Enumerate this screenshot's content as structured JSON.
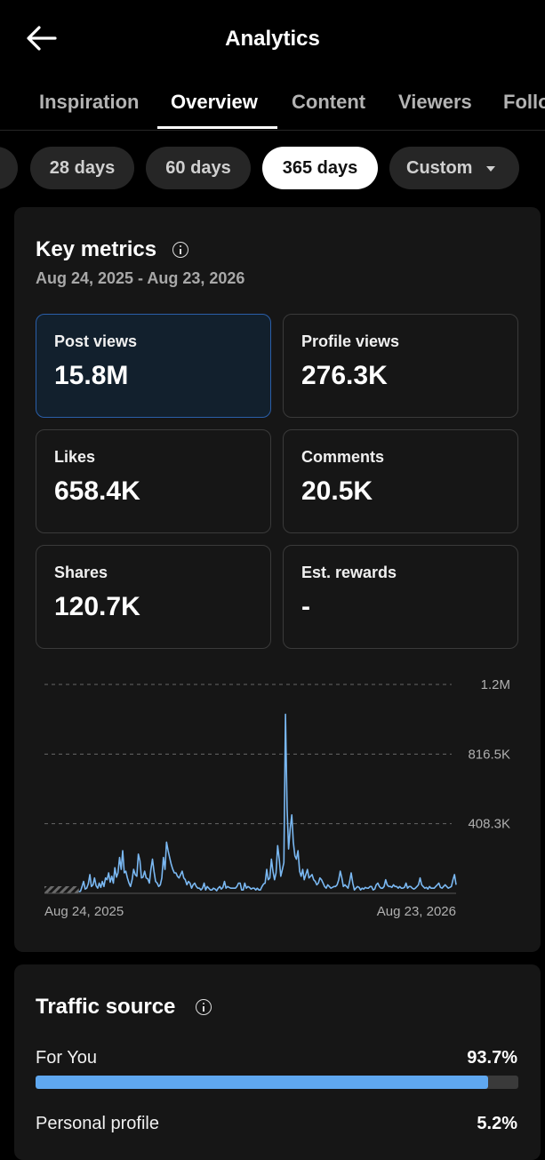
{
  "header": {
    "title": "Analytics",
    "back_icon": "back-arrow-icon"
  },
  "tabs": [
    {
      "label": "Inspiration",
      "active": false
    },
    {
      "label": "Overview",
      "active": true
    },
    {
      "label": "Content",
      "active": false
    },
    {
      "label": "Viewers",
      "active": false
    },
    {
      "label": "Follo",
      "active": false
    }
  ],
  "ranges": [
    {
      "label": "28 days",
      "active": false
    },
    {
      "label": "60 days",
      "active": false
    },
    {
      "label": "365 days",
      "active": true
    },
    {
      "label": "Custom",
      "active": false
    }
  ],
  "key_metrics": {
    "title": "Key metrics",
    "date_range": "Aug 24, 2025 - Aug 23, 2026",
    "cards": [
      {
        "label": "Post views",
        "value": "15.8M",
        "selected": true
      },
      {
        "label": "Profile views",
        "value": "276.3K",
        "selected": false
      },
      {
        "label": "Likes",
        "value": "658.4K",
        "selected": false
      },
      {
        "label": "Comments",
        "value": "20.5K",
        "selected": false
      },
      {
        "label": "Shares",
        "value": "120.7K",
        "selected": false
      },
      {
        "label": "Est. rewards",
        "value": "-",
        "selected": false
      }
    ]
  },
  "chart_data": {
    "type": "line",
    "series": [
      {
        "values": [
          0,
          0,
          0,
          0,
          0,
          0,
          0,
          0,
          0,
          0,
          0,
          0,
          0,
          0,
          0,
          0,
          0,
          0,
          0,
          0,
          0,
          0,
          10000,
          12000,
          40000,
          70000,
          25000,
          30000,
          55000,
          110000,
          40000,
          50000,
          90000,
          45000,
          30000,
          60000,
          35000,
          70000,
          40000,
          90000,
          80000,
          120000,
          65000,
          100000,
          60000,
          150000,
          95000,
          120000,
          210000,
          140000,
          250000,
          120000,
          130000,
          90000,
          60000,
          40000,
          80000,
          140000,
          110000,
          100000,
          230000,
          190000,
          90000,
          95000,
          130000,
          90000,
          85000,
          60000,
          140000,
          200000,
          130000,
          70000,
          60000,
          40000,
          50000,
          90000,
          210000,
          140000,
          300000,
          250000,
          210000,
          170000,
          140000,
          120000,
          120000,
          100000,
          90000,
          110000,
          130000,
          90000,
          80000,
          50000,
          70000,
          60000,
          30000,
          50000,
          60000,
          40000,
          30000,
          30000,
          20000,
          30000,
          60000,
          20000,
          40000,
          30000,
          20000,
          20000,
          30000,
          25000,
          15000,
          30000,
          40000,
          25000,
          35000,
          70000,
          30000,
          40000,
          35000,
          30000,
          30000,
          30000,
          30000,
          40000,
          60000,
          60000,
          20000,
          20000,
          60000,
          30000,
          40000,
          35000,
          25000,
          30000,
          30000,
          20000,
          30000,
          20000,
          20000,
          40000,
          55000,
          60000,
          140000,
          80000,
          90000,
          200000,
          130000,
          80000,
          120000,
          280000,
          200000,
          100000,
          140000,
          180000,
          1050000,
          500000,
          260000,
          380000,
          460000,
          300000,
          220000,
          200000,
          250000,
          130000,
          100000,
          140000,
          80000,
          110000,
          140000,
          90000,
          100000,
          110000,
          80000,
          70000,
          50000,
          60000,
          90000,
          80000,
          60000,
          40000,
          30000,
          50000,
          40000,
          30000,
          35000,
          40000,
          40000,
          50000,
          80000,
          130000,
          90000,
          40000,
          50000,
          40000,
          30000,
          70000,
          120000,
          60000,
          20000,
          30000,
          40000,
          35000,
          20000,
          30000,
          25000,
          35000,
          30000,
          30000,
          40000,
          40000,
          20000,
          25000,
          50000,
          60000,
          40000,
          30000,
          30000,
          40000,
          80000,
          50000,
          40000,
          40000,
          35000,
          50000,
          40000,
          40000,
          30000,
          40000,
          30000,
          30000,
          35000,
          60000,
          30000,
          40000,
          40000,
          30000,
          25000,
          30000,
          40000,
          50000,
          90000,
          50000,
          40000,
          30000,
          35000,
          25000,
          40000,
          30000,
          30000,
          30000,
          40000,
          50000,
          60000,
          35000,
          30000,
          40000,
          50000,
          40000,
          30000,
          35000,
          40000,
          80000,
          110000,
          50000
        ]
      }
    ],
    "y_ticks": [
      "1.2M",
      "816.5K",
      "408.3K"
    ],
    "y_tick_values": [
      1225000,
      816500,
      408300
    ],
    "ylim": [
      0,
      1225000
    ],
    "x_labels": [
      "Aug 24, 2025",
      "Aug 23, 2026"
    ],
    "no_data_leading_points": 22,
    "line_color": "#7ab8f2"
  },
  "traffic_source": {
    "title": "Traffic source",
    "rows": [
      {
        "label": "For You",
        "value": "93.7%",
        "fraction": 0.937
      },
      {
        "label": "Personal profile",
        "value": "5.2%",
        "fraction": 0.052
      }
    ]
  }
}
